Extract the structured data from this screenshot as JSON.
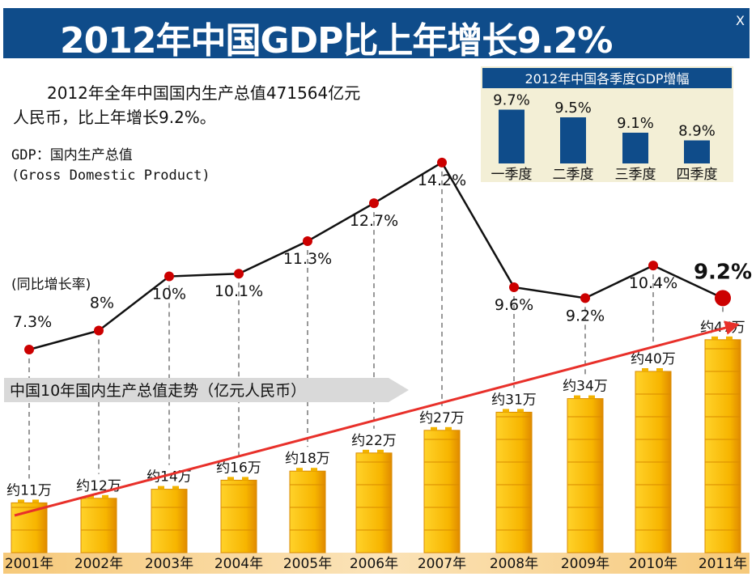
{
  "title": "2012年中国GDP比上年增长9.2%",
  "close_label": "X",
  "summary": {
    "line1": "2012年全年中国国内生产总值471564亿元",
    "line2": "人民币，比上年增长9.2%。"
  },
  "gdp_definition": {
    "line1": "GDP：国内生产总值",
    "line2": "(Gross Domestic Product)"
  },
  "chart_data": [
    {
      "type": "line",
      "ylabel": "(同比增长率)",
      "x": [
        "2001年",
        "2002年",
        "2003年",
        "2004年",
        "2005年",
        "2006年",
        "2007年",
        "2008年",
        "2009年",
        "2010年",
        "2011年"
      ],
      "values": [
        7.3,
        8,
        10,
        10.1,
        11.3,
        12.7,
        14.2,
        9.6,
        9.2,
        10.4,
        9.2
      ],
      "labels": [
        "7.3%",
        "8%",
        "10%",
        "10.1%",
        "11.3%",
        "12.7%",
        "14.2%",
        "9.6%",
        "9.2%",
        "10.4%",
        "9.2%"
      ],
      "color": "#111111",
      "marker_color": "#cc0000"
    },
    {
      "type": "bar",
      "title": "中国10年国内生产总值走势（亿元人民币）",
      "categories": [
        "2001年",
        "2002年",
        "2003年",
        "2004年",
        "2005年",
        "2006年",
        "2007年",
        "2008年",
        "2009年",
        "2010年",
        "2011年"
      ],
      "values": [
        11,
        12,
        14,
        16,
        18,
        22,
        27,
        31,
        34,
        40,
        47
      ],
      "unit": "万亿元",
      "labels": [
        "约11万",
        "约12万",
        "约14万",
        "约16万",
        "约18万",
        "约22万",
        "约27万",
        "约31万",
        "约34万",
        "约40万",
        "约47万"
      ],
      "bar_color": "#f5b400",
      "trend_arrow_color": "#e8302a"
    },
    {
      "type": "bar",
      "title": "2012年中国各季度GDP增幅",
      "categories": [
        "一季度",
        "二季度",
        "三季度",
        "四季度"
      ],
      "values": [
        9.7,
        9.5,
        9.1,
        8.9
      ],
      "labels": [
        "9.7%",
        "9.5%",
        "9.1%",
        "8.9%"
      ],
      "bar_color": "#0f4c8a",
      "background": "#f3efd6"
    }
  ]
}
